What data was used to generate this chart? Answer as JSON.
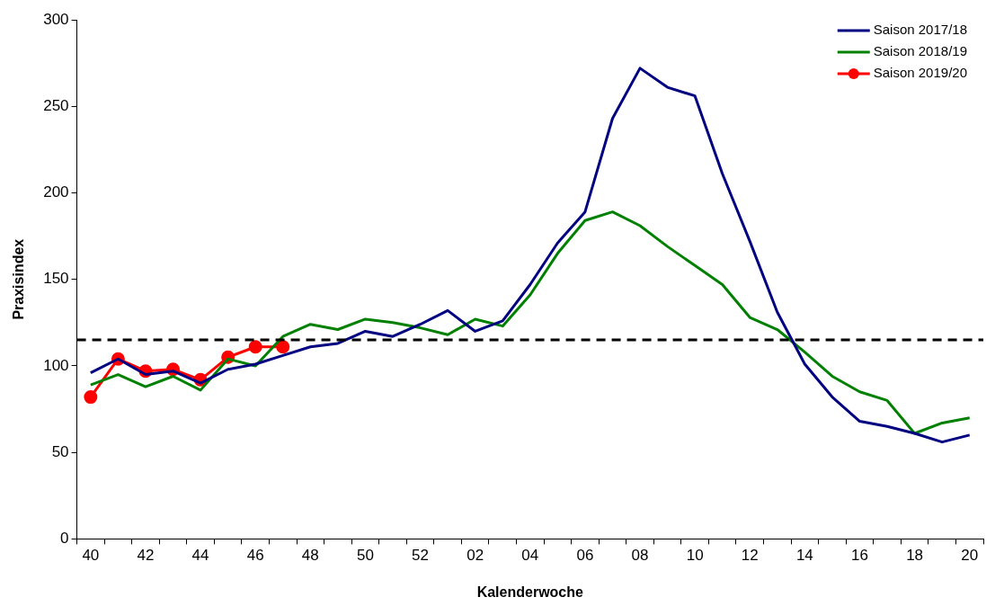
{
  "chart_data": {
    "type": "line",
    "xlabel": "Kalenderwoche",
    "ylabel": "Praxisindex",
    "categories": [
      "40",
      null,
      "42",
      null,
      "44",
      null,
      "46",
      null,
      "48",
      null,
      "50",
      null,
      "52",
      null,
      "02",
      null,
      "04",
      null,
      "06",
      null,
      "08",
      null,
      "10",
      null,
      "12",
      null,
      "14",
      null,
      "16",
      null,
      "18",
      null,
      "20"
    ],
    "series": [
      {
        "name": "Saison 2017/18",
        "color": "#000080",
        "marker": "none",
        "values": [
          96,
          104,
          95,
          97,
          90,
          98,
          101,
          106,
          111,
          113,
          120,
          117,
          124,
          132,
          120,
          126,
          147,
          171,
          189,
          243,
          272,
          261,
          256,
          211,
          172,
          131,
          101,
          82,
          68,
          65,
          61,
          56,
          60
        ]
      },
      {
        "name": "Saison 2018/19",
        "color": "#008000",
        "marker": "none",
        "values": [
          89,
          95,
          88,
          94,
          86,
          104,
          100,
          117,
          124,
          121,
          127,
          125,
          122,
          118,
          127,
          123,
          141,
          165,
          184,
          189,
          181,
          169,
          158,
          147,
          128,
          121,
          108,
          94,
          85,
          80,
          61,
          67,
          70
        ]
      },
      {
        "name": "Saison 2019/20",
        "color": "#ff0000",
        "marker": "circle",
        "values": [
          82,
          104,
          97,
          98,
          92,
          105,
          111,
          111,
          null,
          null,
          null,
          null,
          null,
          null,
          null,
          null,
          null,
          null,
          null,
          null,
          null,
          null,
          null,
          null,
          null,
          null,
          null,
          null,
          null,
          null,
          null,
          null,
          null
        ]
      }
    ],
    "ylim": [
      0,
      300
    ],
    "yticks": [
      0,
      50,
      100,
      150,
      200,
      250,
      300
    ],
    "grid": false,
    "legend": "top right",
    "ref_lines": [
      {
        "axis": "y",
        "value": 115,
        "color": "#000000",
        "line_style": "dashed"
      }
    ]
  }
}
